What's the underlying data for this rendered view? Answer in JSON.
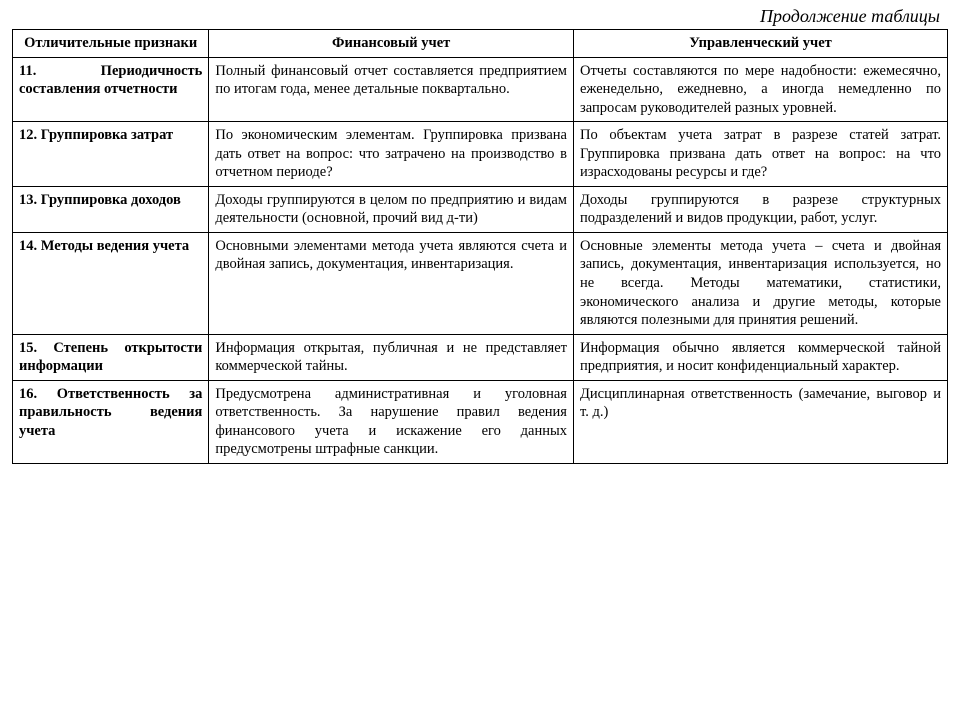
{
  "caption": "Продолжение таблицы",
  "table": {
    "columns": [
      "Отличительные признаки",
      "Финансовый учет",
      "Управленческий учет"
    ],
    "column_widths_pct": [
      21,
      39,
      40
    ],
    "header_fontsize": 14.5,
    "cell_fontsize": 14.5,
    "border_color": "#000000",
    "background_color": "#ffffff",
    "text_color": "#000000",
    "rows": [
      {
        "label": "11. Периодичность составления отчетности",
        "fin": "Полный финансовый отчет составляется предприятием по итогам года, менее детальные поквартально.",
        "mgmt": "Отчеты составляются по мере надобности: ежемесячно, еженедельно, ежедневно, а иногда немедленно по запросам руководителей разных уровней."
      },
      {
        "label": "12. Группировка затрат",
        "fin": "По экономическим элементам. Группировка призвана дать ответ на вопрос: что затрачено на производство в отчетном периоде?",
        "mgmt": "По объектам учета затрат в разрезе статей затрат. Группировка призвана дать ответ на вопрос: на что израсходованы ресурсы и где?"
      },
      {
        "label": "13. Группировка доходов",
        "fin": "Доходы группируются в целом по предприятию и видам деятельности (основной, прочий вид д-ти)",
        "mgmt": "Доходы группируются в разрезе структурных подразделений и видов продукции, работ, услуг."
      },
      {
        "label": "14. Методы ведения учета",
        "fin": "Основными элементами метода учета являются счета и двойная запись, документация, инвентаризация.",
        "mgmt": "Основные элементы метода учета – счета и двойная запись, документация, инвентаризация используется, но не всегда. Методы математики, статистики, экономического анализа и другие методы, которые являются полезными для принятия решений."
      },
      {
        "label": "15. Степень открытости информации",
        "fin": "Информация открытая, публичная и не представляет коммерческой тайны.",
        "mgmt": "Информация обычно является коммерческой тайной предприятия, и носит конфиденциальный характер."
      },
      {
        "label": "16. Ответственность за правильность ведения учета",
        "fin": "Предусмотрена административная и уголовная ответственность. За нарушение правил ведения финансового учета и искажение его данных предусмотрены штрафные санкции.",
        "mgmt": "Дисциплинарная ответственность (замечание, выговор и т. д.)"
      }
    ]
  }
}
